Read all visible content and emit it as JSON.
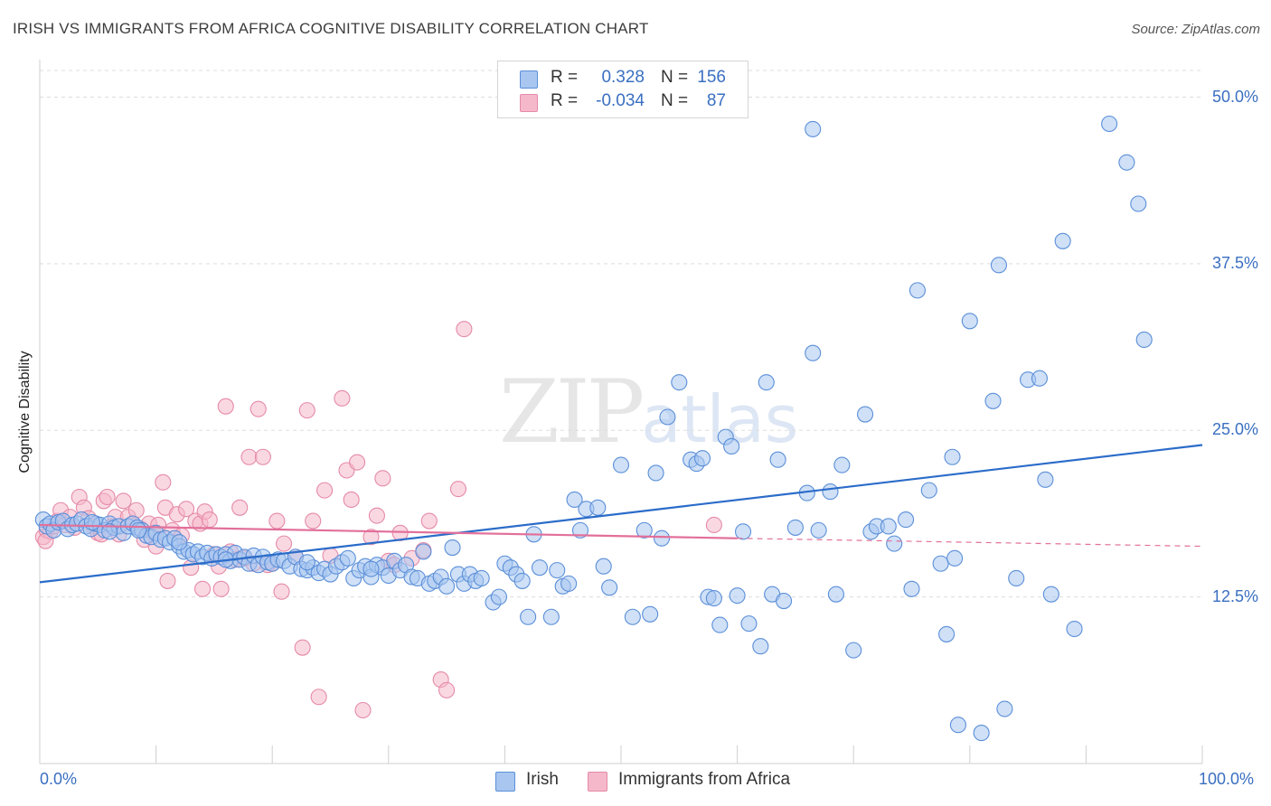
{
  "header": {
    "title": "IRISH VS IMMIGRANTS FROM AFRICA COGNITIVE DISABILITY CORRELATION CHART",
    "source": "Source: ZipAtlas.com"
  },
  "watermark": {
    "zip": "ZIP",
    "atlas": "atlas"
  },
  "legend": {
    "rows": [
      {
        "r_label": "R =",
        "r_value": "0.328",
        "n_label": "N =",
        "n_value": "156",
        "color": "#a8c6f0"
      },
      {
        "r_label": "R =",
        "r_value": "-0.034",
        "n_label": "N =",
        "n_value": "87",
        "color": "#f5b8cb"
      }
    ]
  },
  "colors": {
    "irish_fill": "#a8c6f0",
    "irish_stroke": "#5b8fd8",
    "irish_line": "#2b6cc9",
    "africa_fill": "#f5b8cb",
    "africa_stroke": "#e58aa8",
    "africa_line": "#e2709a",
    "grid": "#dddddd",
    "tick_text": "#3a6fc1"
  },
  "chart_data": {
    "type": "scatter",
    "title": "IRISH VS IMMIGRANTS FROM AFRICA COGNITIVE DISABILITY CORRELATION CHART",
    "xlabel": "",
    "ylabel": "Cognitive Disability",
    "xlim": [
      0,
      100
    ],
    "ylim": [
      0,
      52
    ],
    "x_tick_labels": [
      "0.0%",
      "100.0%"
    ],
    "y_ticks": [
      12.5,
      25.0,
      37.5,
      50.0
    ],
    "y_tick_labels": [
      "12.5%",
      "25.0%",
      "37.5%",
      "50.0%"
    ],
    "grid": true,
    "legend_position": "bottom",
    "series": [
      {
        "name": "Irish",
        "trend": {
          "x": [
            0,
            100
          ],
          "y": [
            13.6,
            23.9
          ],
          "style": "solid"
        },
        "points": [
          [
            0.3,
            18.3
          ],
          [
            0.6,
            17.8
          ],
          [
            0.9,
            18.0
          ],
          [
            1.2,
            17.5
          ],
          [
            1.6,
            18.1
          ],
          [
            2.0,
            18.2
          ],
          [
            2.4,
            17.6
          ],
          [
            2.8,
            17.9
          ],
          [
            3.2,
            18.0
          ],
          [
            3.6,
            18.3
          ],
          [
            4.0,
            17.8
          ],
          [
            4.4,
            17.6
          ],
          [
            4.8,
            18.0
          ],
          [
            5.2,
            17.9
          ],
          [
            5.6,
            17.5
          ],
          [
            6.0,
            18.0
          ],
          [
            6.4,
            17.7
          ],
          [
            6.8,
            17.8
          ],
          [
            7.2,
            17.3
          ],
          [
            7.6,
            17.8
          ],
          [
            8.0,
            18.0
          ],
          [
            8.4,
            17.7
          ],
          [
            8.8,
            17.5
          ],
          [
            9.2,
            17.1
          ],
          [
            9.6,
            17.0
          ],
          [
            10.0,
            17.3
          ],
          [
            10.4,
            16.8
          ],
          [
            10.8,
            16.9
          ],
          [
            11.2,
            16.6
          ],
          [
            11.6,
            16.9
          ],
          [
            12.0,
            16.3
          ],
          [
            12.4,
            15.9
          ],
          [
            12.8,
            16.0
          ],
          [
            13.2,
            15.7
          ],
          [
            13.6,
            15.9
          ],
          [
            14.0,
            15.5
          ],
          [
            14.4,
            15.8
          ],
          [
            14.8,
            15.4
          ],
          [
            15.2,
            15.7
          ],
          [
            15.6,
            15.5
          ],
          [
            16.0,
            15.7
          ],
          [
            16.4,
            15.2
          ],
          [
            16.8,
            15.8
          ],
          [
            17.2,
            15.3
          ],
          [
            17.6,
            15.5
          ],
          [
            18.0,
            15.0
          ],
          [
            18.4,
            15.6
          ],
          [
            18.8,
            14.9
          ],
          [
            19.2,
            15.5
          ],
          [
            19.6,
            15.1
          ],
          [
            20.0,
            15.0
          ],
          [
            20.5,
            15.3
          ],
          [
            21.0,
            15.2
          ],
          [
            21.5,
            14.8
          ],
          [
            22.0,
            15.5
          ],
          [
            22.5,
            14.6
          ],
          [
            23.0,
            14.5
          ],
          [
            23.5,
            14.7
          ],
          [
            24.0,
            14.3
          ],
          [
            24.5,
            14.6
          ],
          [
            25.0,
            14.2
          ],
          [
            25.5,
            14.8
          ],
          [
            26.0,
            15.1
          ],
          [
            26.5,
            15.4
          ],
          [
            27.0,
            13.9
          ],
          [
            27.5,
            14.5
          ],
          [
            28.0,
            14.8
          ],
          [
            28.5,
            14.0
          ],
          [
            29.0,
            14.9
          ],
          [
            29.5,
            14.7
          ],
          [
            30.0,
            14.1
          ],
          [
            30.5,
            15.2
          ],
          [
            31.0,
            14.5
          ],
          [
            31.5,
            14.9
          ],
          [
            32.0,
            14.0
          ],
          [
            32.5,
            13.9
          ],
          [
            33.0,
            15.9
          ],
          [
            33.5,
            13.5
          ],
          [
            34.0,
            13.7
          ],
          [
            34.5,
            14.0
          ],
          [
            35.0,
            13.3
          ],
          [
            35.5,
            16.2
          ],
          [
            36.0,
            14.2
          ],
          [
            36.5,
            13.5
          ],
          [
            37.0,
            14.2
          ],
          [
            37.5,
            13.7
          ],
          [
            38.0,
            13.9
          ],
          [
            39.0,
            12.1
          ],
          [
            39.5,
            12.5
          ],
          [
            40.0,
            15.0
          ],
          [
            40.5,
            14.7
          ],
          [
            41.0,
            14.2
          ],
          [
            41.5,
            13.7
          ],
          [
            42.0,
            11.0
          ],
          [
            42.5,
            17.2
          ],
          [
            43.0,
            14.7
          ],
          [
            44.0,
            11.0
          ],
          [
            44.5,
            14.5
          ],
          [
            45.0,
            13.3
          ],
          [
            45.5,
            13.5
          ],
          [
            46.0,
            19.8
          ],
          [
            46.5,
            17.5
          ],
          [
            47.0,
            19.1
          ],
          [
            48.0,
            19.2
          ],
          [
            48.5,
            14.8
          ],
          [
            49.0,
            13.2
          ],
          [
            50.0,
            22.4
          ],
          [
            51.0,
            11.0
          ],
          [
            52.0,
            17.5
          ],
          [
            52.5,
            11.2
          ],
          [
            53.0,
            21.8
          ],
          [
            53.5,
            16.9
          ],
          [
            54.0,
            26.0
          ],
          [
            55.0,
            28.6
          ],
          [
            56.0,
            22.8
          ],
          [
            56.5,
            22.5
          ],
          [
            57.0,
            22.9
          ],
          [
            57.5,
            12.5
          ],
          [
            58.0,
            12.4
          ],
          [
            58.5,
            10.4
          ],
          [
            59.0,
            24.5
          ],
          [
            59.5,
            23.8
          ],
          [
            60.0,
            12.6
          ],
          [
            60.5,
            17.4
          ],
          [
            61.0,
            10.5
          ],
          [
            62.0,
            8.8
          ],
          [
            62.5,
            28.6
          ],
          [
            63.0,
            12.7
          ],
          [
            63.5,
            22.8
          ],
          [
            64.0,
            12.2
          ],
          [
            65.0,
            17.7
          ],
          [
            66.0,
            20.3
          ],
          [
            66.5,
            30.8
          ],
          [
            67.0,
            17.5
          ],
          [
            68.0,
            20.4
          ],
          [
            68.5,
            12.7
          ],
          [
            69.0,
            22.4
          ],
          [
            70.0,
            8.5
          ],
          [
            71.0,
            26.2
          ],
          [
            71.5,
            17.4
          ],
          [
            72.0,
            17.8
          ],
          [
            73.0,
            17.8
          ],
          [
            73.5,
            16.5
          ],
          [
            74.5,
            18.3
          ],
          [
            75.0,
            13.1
          ],
          [
            75.5,
            35.5
          ],
          [
            76.5,
            20.5
          ],
          [
            77.5,
            15.0
          ],
          [
            78.0,
            9.7
          ],
          [
            78.5,
            23.0
          ],
          [
            78.7,
            15.4
          ],
          [
            79.0,
            2.9
          ],
          [
            80.0,
            33.2
          ],
          [
            81.0,
            2.3
          ],
          [
            82.0,
            27.2
          ],
          [
            82.5,
            37.4
          ],
          [
            83.0,
            4.1
          ],
          [
            84.0,
            13.9
          ],
          [
            85.0,
            28.8
          ],
          [
            86.0,
            28.9
          ],
          [
            86.5,
            21.3
          ],
          [
            87.0,
            12.7
          ],
          [
            88.0,
            39.2
          ],
          [
            89.0,
            10.1
          ],
          [
            92.0,
            48.0
          ],
          [
            93.5,
            45.1
          ],
          [
            94.5,
            42.0
          ],
          [
            95.0,
            31.8
          ],
          [
            66.5,
            47.6
          ],
          [
            28.5,
            14.6
          ],
          [
            23.0,
            15.1
          ],
          [
            16.0,
            15.3
          ],
          [
            12.0,
            16.6
          ],
          [
            8.5,
            17.5
          ],
          [
            6.0,
            17.4
          ],
          [
            4.5,
            18.1
          ]
        ]
      },
      {
        "name": "Immigrants from Africa",
        "trend": {
          "x": [
            0,
            60
          ],
          "y": [
            17.9,
            16.9
          ],
          "style": "solid",
          "extension_x": [
            60,
            100
          ],
          "extension_y": [
            16.9,
            16.3
          ]
        },
        "points": [
          [
            0.3,
            17.0
          ],
          [
            0.6,
            17.5
          ],
          [
            0.9,
            17.4
          ],
          [
            1.2,
            17.8
          ],
          [
            1.5,
            18.2
          ],
          [
            1.8,
            19.0
          ],
          [
            2.2,
            17.9
          ],
          [
            2.6,
            18.5
          ],
          [
            3.0,
            17.7
          ],
          [
            3.4,
            20.0
          ],
          [
            3.8,
            19.2
          ],
          [
            4.2,
            18.4
          ],
          [
            4.6,
            17.8
          ],
          [
            5.0,
            17.3
          ],
          [
            5.5,
            19.7
          ],
          [
            5.8,
            20.0
          ],
          [
            6.2,
            17.8
          ],
          [
            6.5,
            18.5
          ],
          [
            6.8,
            17.2
          ],
          [
            7.2,
            19.7
          ],
          [
            7.6,
            18.5
          ],
          [
            8.0,
            18.0
          ],
          [
            8.3,
            19.0
          ],
          [
            8.7,
            17.6
          ],
          [
            9.0,
            16.8
          ],
          [
            9.4,
            18.0
          ],
          [
            9.8,
            17.3
          ],
          [
            10.2,
            17.9
          ],
          [
            10.6,
            21.1
          ],
          [
            10.8,
            19.2
          ],
          [
            11.0,
            13.7
          ],
          [
            11.4,
            17.5
          ],
          [
            11.8,
            18.7
          ],
          [
            12.2,
            17.1
          ],
          [
            12.6,
            19.1
          ],
          [
            13.0,
            14.7
          ],
          [
            13.4,
            18.2
          ],
          [
            13.8,
            18.0
          ],
          [
            14.2,
            18.9
          ],
          [
            14.6,
            18.3
          ],
          [
            15.0,
            15.7
          ],
          [
            15.4,
            14.8
          ],
          [
            15.6,
            13.1
          ],
          [
            16.0,
            26.8
          ],
          [
            16.4,
            15.9
          ],
          [
            16.8,
            15.3
          ],
          [
            17.2,
            19.2
          ],
          [
            17.6,
            15.4
          ],
          [
            18.0,
            23.0
          ],
          [
            18.4,
            15.0
          ],
          [
            18.8,
            26.6
          ],
          [
            19.2,
            23.0
          ],
          [
            19.6,
            14.9
          ],
          [
            20.0,
            15.0
          ],
          [
            20.4,
            18.2
          ],
          [
            20.8,
            12.9
          ],
          [
            21.0,
            16.5
          ],
          [
            22.0,
            15.5
          ],
          [
            22.6,
            8.7
          ],
          [
            23.0,
            26.5
          ],
          [
            23.5,
            18.2
          ],
          [
            24.0,
            5.0
          ],
          [
            24.5,
            20.5
          ],
          [
            25.0,
            15.6
          ],
          [
            26.0,
            27.4
          ],
          [
            26.4,
            22.0
          ],
          [
            26.8,
            19.8
          ],
          [
            27.3,
            22.6
          ],
          [
            27.8,
            4.0
          ],
          [
            28.5,
            17.0
          ],
          [
            29.0,
            18.6
          ],
          [
            29.5,
            21.4
          ],
          [
            30.0,
            15.2
          ],
          [
            30.5,
            14.9
          ],
          [
            31.0,
            17.3
          ],
          [
            32.0,
            15.4
          ],
          [
            33.0,
            16.0
          ],
          [
            33.5,
            18.2
          ],
          [
            34.5,
            6.3
          ],
          [
            35.0,
            5.5
          ],
          [
            36.0,
            20.6
          ],
          [
            36.5,
            32.6
          ],
          [
            14.0,
            13.1
          ],
          [
            10.0,
            16.3
          ],
          [
            5.3,
            17.2
          ],
          [
            0.5,
            16.7
          ],
          [
            58.0,
            17.9
          ]
        ]
      }
    ]
  },
  "bottom_legend": {
    "items": [
      {
        "label": "Irish"
      },
      {
        "label": "Immigrants from Africa"
      }
    ]
  }
}
